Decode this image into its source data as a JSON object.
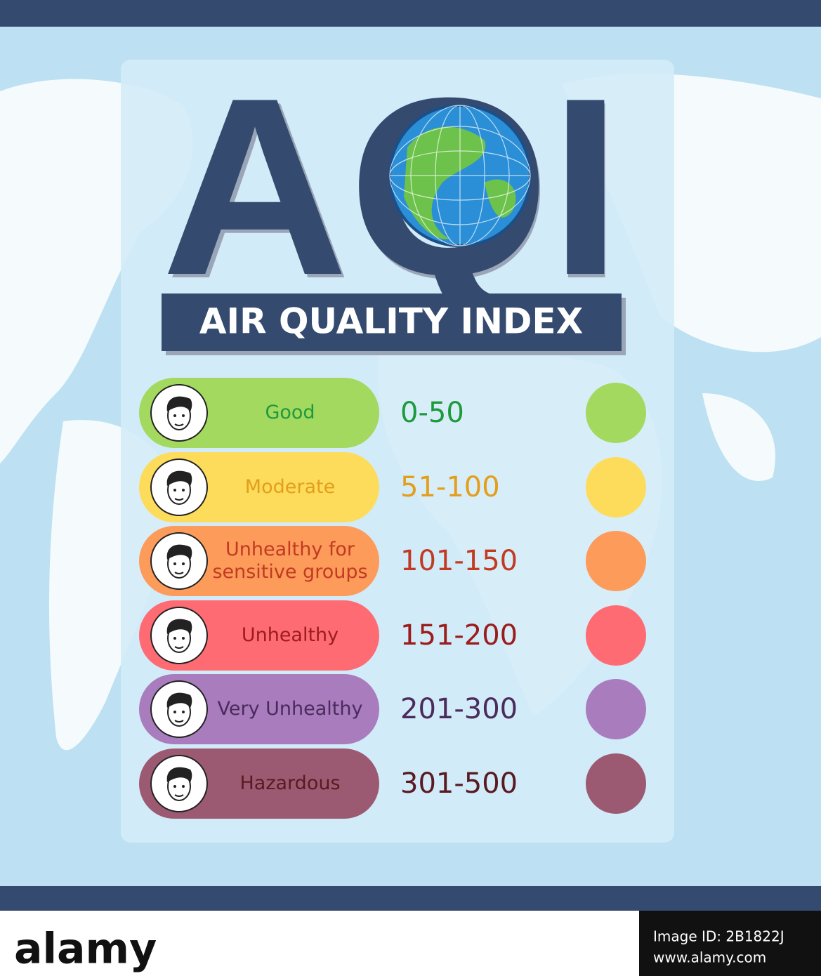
{
  "header": {
    "title": "AQI",
    "subtitle": "AIR QUALITY INDEX"
  },
  "levels": [
    {
      "label": "Good",
      "range": "0-50",
      "color": "#a3d95f",
      "text_color": "#1e9a3c"
    },
    {
      "label": "Moderate",
      "range": "51-100",
      "color": "#fddc5c",
      "text_color": "#e39e1c"
    },
    {
      "label": "Unhealthy for sensitive groups",
      "range": "101-150",
      "color": "#fd9b5a",
      "text_color": "#c23a22"
    },
    {
      "label": "Unhealthy",
      "range": "151-200",
      "color": "#fe6b73",
      "text_color": "#9c1c1c"
    },
    {
      "label": "Very Unhealthy",
      "range": "201-300",
      "color": "#a97cbd",
      "text_color": "#4a2b5c"
    },
    {
      "label": "Hazardous",
      "range": "301-500",
      "color": "#9c5a72",
      "text_color": "#5a1a22"
    }
  ],
  "footer": {
    "brand": "alamy",
    "image_id": "Image ID: 2B1822J",
    "url": "www.alamy.com"
  }
}
